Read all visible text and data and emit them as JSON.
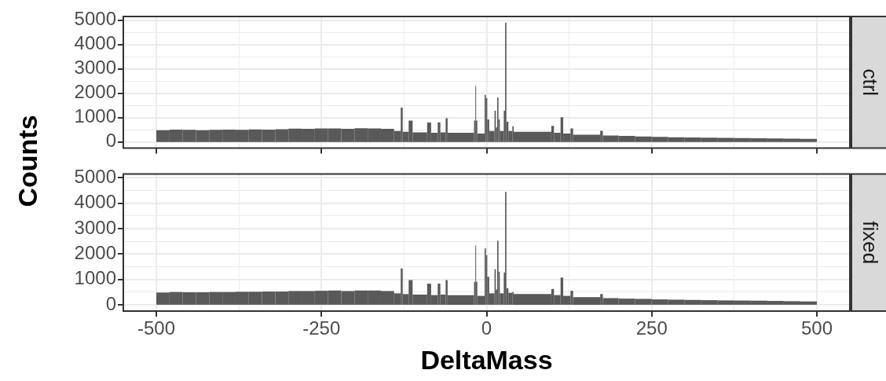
{
  "chart_data": [
    {
      "type": "histogram",
      "title": "ctrl",
      "ylabel": "Counts",
      "color": "#595959",
      "tick_labels": "y",
      "grid": true,
      "xlim": [
        -550,
        550
      ],
      "xticks": [
        -500,
        {
          "value": -375,
          "label": null
        },
        -250,
        {
          "value": -125,
          "label": null
        },
        0,
        {
          "value": 125,
          "label": null
        },
        250,
        {
          "value": 375,
          "label": null
        },
        500
      ],
      "ylim": [
        -250,
        5150
      ],
      "yticks": [
        0,
        {
          "value": 500,
          "label": null
        },
        1000,
        {
          "value": 1500,
          "label": null
        },
        2000,
        {
          "value": 2500,
          "label": null
        },
        3000,
        {
          "value": 3500,
          "label": null
        },
        4000,
        {
          "value": 4500,
          "label": null
        },
        5000
      ],
      "bins": [
        -500,
        -480,
        -460,
        -440,
        -420,
        -400,
        -380,
        -360,
        -340,
        -320,
        -300,
        -280,
        -260,
        -240,
        -220,
        -200,
        -180,
        -160,
        -140,
        -130,
        -127,
        -118,
        -112,
        -90,
        -84,
        -74,
        -70,
        -62,
        -59,
        -19,
        -17,
        -16,
        -14,
        -3,
        -1,
        1,
        4,
        12,
        14,
        16,
        18,
        20,
        26,
        28,
        30,
        33,
        39,
        41,
        98,
        102,
        112,
        116,
        127,
        131,
        172,
        176,
        200,
        225,
        250,
        275,
        300,
        325,
        350,
        375,
        400,
        425,
        450,
        475,
        500
      ],
      "values": [
        490,
        510,
        500,
        490,
        500,
        510,
        500,
        520,
        510,
        530,
        550,
        540,
        560,
        560,
        540,
        570,
        560,
        540,
        450,
        1410,
        420,
        880,
        400,
        800,
        380,
        810,
        400,
        980,
        380,
        880,
        2300,
        880,
        350,
        1940,
        1800,
        930,
        450,
        1280,
        600,
        1830,
        930,
        450,
        1280,
        4900,
        830,
        450,
        650,
        420,
        660,
        380,
        1020,
        350,
        560,
        300,
        460,
        270,
        250,
        230,
        210,
        200,
        190,
        180,
        170,
        165,
        160,
        150,
        140,
        130
      ]
    },
    {
      "type": "histogram",
      "title": "fixed",
      "xlabel": "DeltaMass",
      "color": "#595959",
      "grid": true,
      "xlim": [
        -550,
        550
      ],
      "xticks": [
        -500,
        {
          "value": -375,
          "label": null
        },
        -250,
        {
          "value": -125,
          "label": null
        },
        0,
        {
          "value": 125,
          "label": null
        },
        250,
        {
          "value": 375,
          "label": null
        },
        500
      ],
      "ylim": [
        -250,
        5150
      ],
      "yticks": [
        0,
        {
          "value": 500,
          "label": null
        },
        1000,
        {
          "value": 1500,
          "label": null
        },
        2000,
        {
          "value": 2500,
          "label": null
        },
        3000,
        {
          "value": 3500,
          "label": null
        },
        4000,
        {
          "value": 4500,
          "label": null
        },
        5000
      ],
      "bins": [
        -500,
        -480,
        -460,
        -440,
        -420,
        -400,
        -380,
        -360,
        -340,
        -320,
        -300,
        -280,
        -260,
        -240,
        -220,
        -200,
        -180,
        -160,
        -140,
        -130,
        -127,
        -118,
        -112,
        -90,
        -84,
        -74,
        -70,
        -62,
        -59,
        -19,
        -17,
        -16,
        -14,
        -3,
        -1,
        1,
        4,
        12,
        14,
        16,
        18,
        20,
        26,
        28,
        30,
        33,
        39,
        41,
        98,
        102,
        112,
        116,
        127,
        131,
        172,
        176,
        200,
        225,
        250,
        275,
        300,
        325,
        350,
        375,
        400,
        425,
        450,
        475,
        500
      ],
      "values": [
        480,
        500,
        490,
        490,
        500,
        500,
        510,
        510,
        520,
        520,
        540,
        540,
        550,
        560,
        540,
        560,
        560,
        540,
        450,
        1430,
        420,
        970,
        400,
        830,
        380,
        830,
        400,
        970,
        380,
        900,
        2330,
        900,
        350,
        2220,
        1950,
        1100,
        450,
        1400,
        600,
        2520,
        1300,
        450,
        1270,
        4440,
        650,
        470,
        500,
        420,
        620,
        380,
        1070,
        350,
        550,
        300,
        420,
        260,
        240,
        230,
        210,
        200,
        190,
        180,
        170,
        165,
        160,
        150,
        140,
        130
      ]
    }
  ]
}
